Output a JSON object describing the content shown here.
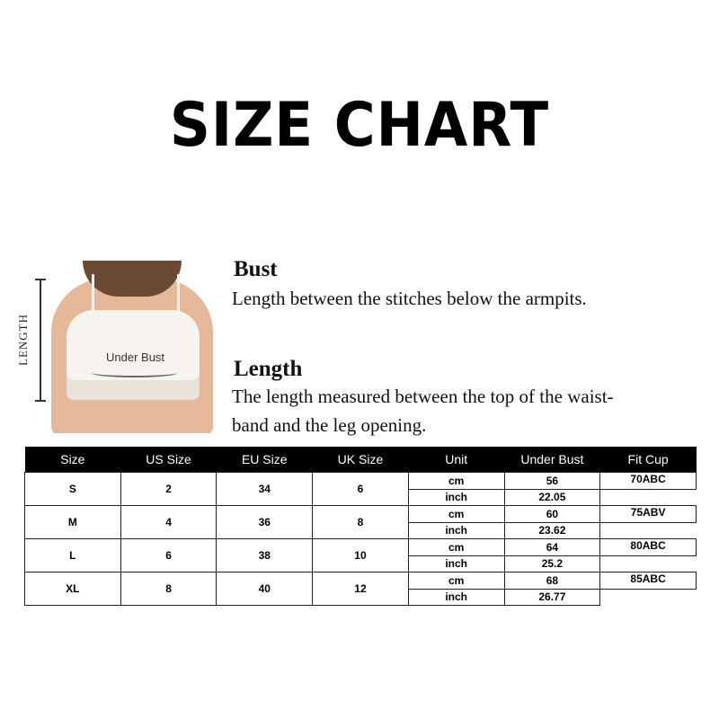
{
  "title": "SIZE CHART",
  "image": {
    "under_bust_label": "Under Bust",
    "length_label": "LENGTH"
  },
  "bust": {
    "heading": "Bust",
    "text": "Length between the stitches below the armpits."
  },
  "length": {
    "heading": "Length",
    "text_line1": "The length measured between the top of the waist-",
    "text_line2": "band and the leg opening."
  },
  "table": {
    "headers": [
      "Size",
      "US Size",
      "EU Size",
      "UK Size",
      "Unit",
      "Under Bust",
      "Fit Cup"
    ],
    "rows": [
      {
        "size": "S",
        "us": "2",
        "eu": "34",
        "uk": "6",
        "unit_cm": "cm",
        "bust_cm": "56",
        "unit_inch": "inch",
        "bust_inch": "22.05",
        "cup": "70ABC"
      },
      {
        "size": "M",
        "us": "4",
        "eu": "36",
        "uk": "8",
        "unit_cm": "cm",
        "bust_cm": "60",
        "unit_inch": "inch",
        "bust_inch": "23.62",
        "cup": "75ABV"
      },
      {
        "size": "L",
        "us": "6",
        "eu": "38",
        "uk": "10",
        "unit_cm": "cm",
        "bust_cm": "64",
        "unit_inch": "inch",
        "bust_inch": "25.2",
        "cup": "80ABC"
      },
      {
        "size": "XL",
        "us": "8",
        "eu": "40",
        "uk": "12",
        "unit_cm": "cm",
        "bust_cm": "68",
        "unit_inch": "inch",
        "bust_inch": "26.77",
        "cup": "85ABC"
      }
    ]
  }
}
